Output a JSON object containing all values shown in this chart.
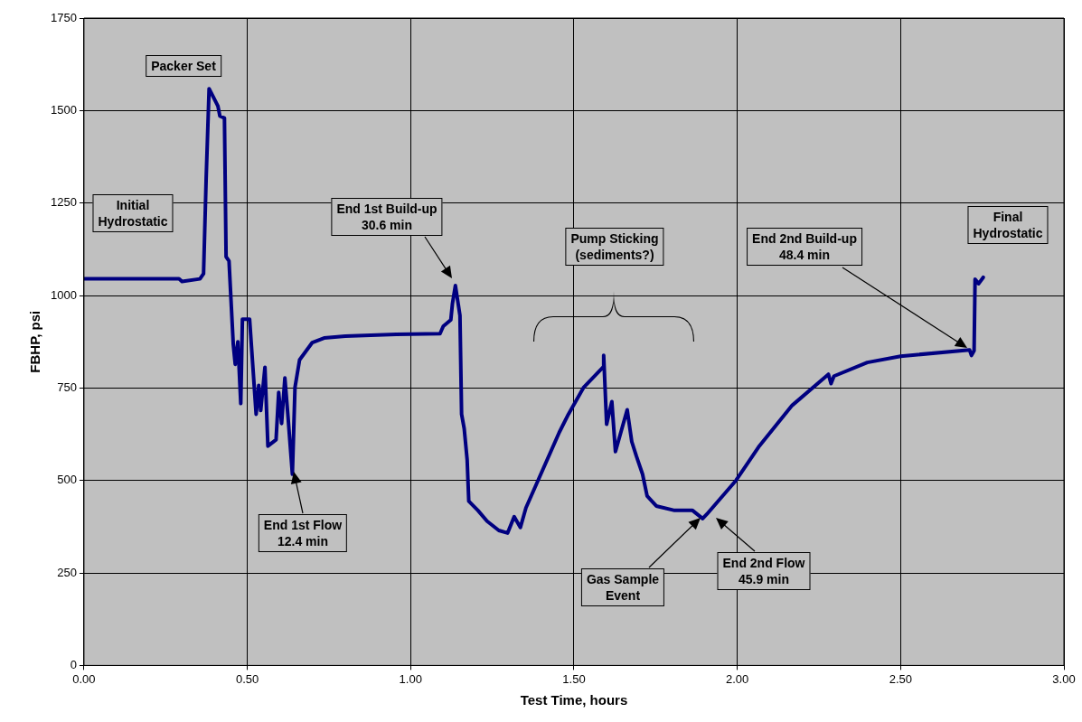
{
  "chart_data": {
    "type": "line",
    "xlabel": "Test Time, hours",
    "ylabel": "FBHP, psi",
    "x": [
      0,
      0.291,
      0.3,
      0.355,
      0.366,
      0.374,
      0.383,
      0.41,
      0.416,
      0.43,
      0.435,
      0.444,
      0.457,
      0.463,
      0.471,
      0.48,
      0.485,
      0.507,
      0.527,
      0.535,
      0.541,
      0.554,
      0.563,
      0.588,
      0.596,
      0.605,
      0.615,
      0.624,
      0.638,
      0.646,
      0.66,
      0.699,
      0.735,
      0.8,
      0.956,
      1.09,
      1.1,
      1.123,
      1.128,
      1.137,
      1.151,
      1.156,
      1.164,
      1.173,
      1.178,
      1.206,
      1.234,
      1.27,
      1.297,
      1.317,
      1.336,
      1.353,
      1.455,
      1.483,
      1.53,
      1.589,
      1.591,
      1.6,
      1.616,
      1.627,
      1.663,
      1.677,
      1.691,
      1.71,
      1.724,
      1.752,
      1.808,
      1.863,
      1.894,
      1.907,
      1.996,
      2.065,
      2.168,
      2.279,
      2.287,
      2.296,
      2.398,
      2.5,
      2.711,
      2.717,
      2.725,
      2.728,
      2.739,
      2.753
    ],
    "values": [
      1045,
      1045,
      1038,
      1045,
      1059,
      1316,
      1559,
      1512,
      1485,
      1480,
      1105,
      1093,
      868,
      814,
      875,
      708,
      936,
      936,
      679,
      757,
      689,
      806,
      593,
      610,
      738,
      654,
      777,
      679,
      517,
      752,
      826,
      873,
      885,
      890,
      895,
      897,
      917,
      934,
      978,
      1027,
      946,
      679,
      640,
      556,
      444,
      419,
      390,
      365,
      358,
      402,
      373,
      426,
      630,
      679,
      752,
      806,
      838,
      652,
      713,
      578,
      691,
      605,
      566,
      517,
      458,
      431,
      419,
      419,
      397,
      409,
      500,
      590,
      703,
      787,
      762,
      782,
      819,
      836,
      853,
      838,
      851,
      1044,
      1032,
      1049
    ],
    "color": "#000080",
    "xlim": [
      0,
      3
    ],
    "ylim": [
      0,
      1750
    ],
    "xticks": [
      {
        "value": 0,
        "label": "0.00"
      },
      {
        "value": 0.5,
        "label": "0.50"
      },
      {
        "value": 1,
        "label": "1.00"
      },
      {
        "value": 1.5,
        "label": "1.50"
      },
      {
        "value": 2,
        "label": "2.00"
      },
      {
        "value": 2.5,
        "label": "2.50"
      },
      {
        "value": 3,
        "label": "3.00"
      }
    ],
    "yticks": [
      0,
      250,
      500,
      750,
      1000,
      1250,
      1500,
      1750
    ],
    "grid": true,
    "marker": "none",
    "annotations": [
      "Initial\nHydrostatic",
      "Packer Set",
      "End 1st Flow\n12.4 min",
      "End 1st Build-up\n30.6 min",
      "Pump Sticking\n(sediments?)",
      "Gas Sample\nEvent",
      "End 2nd Flow\n45.9 min",
      "End 2nd Build-up\n48.4 min",
      "Final\nHydrostatic"
    ]
  }
}
